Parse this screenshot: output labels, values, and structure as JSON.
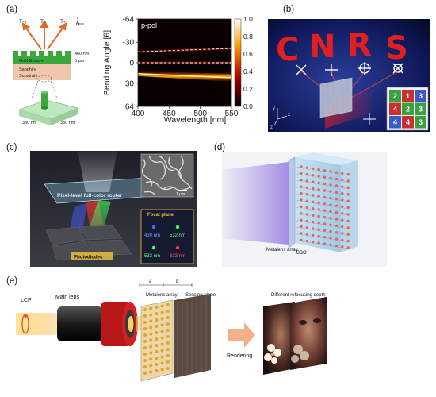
{
  "panels": {
    "a": {
      "label": "(a)",
      "orders": [
        "T₋₁",
        "T₀",
        "T₊₁"
      ],
      "dim_top": "460 nm",
      "dim_mid": "5 μm",
      "layer_epi": "GaN Epilayer",
      "layer_sapphire": "Sapphire",
      "layer_substrate": "Substrate",
      "pillar_w1": "330 nm",
      "pillar_w2": "330 nm",
      "plot_tag": "p-pol",
      "colorbar_ticks": [
        "1.0",
        "0.8",
        "0.6",
        "0.4",
        "0.2",
        "0.0"
      ]
    },
    "b": {
      "label": "(b)",
      "letters": [
        "C",
        "N",
        "R",
        "S"
      ],
      "grid": [
        "2",
        "1",
        "3",
        "4",
        "2",
        "3",
        "4",
        "4",
        "3"
      ],
      "axes": [
        "y",
        "x",
        "z"
      ]
    },
    "c": {
      "label": "(c)",
      "router": "Pixel-level full-color router",
      "scale": "1 μm",
      "focal": "Focal plane",
      "wl": [
        "430 nm",
        "532 nm",
        "532 nm",
        "633 nm"
      ],
      "photodiodes": "Photodiodes"
    },
    "d": {
      "label": "(d)",
      "metalens": "Metalens array",
      "bbo": "BBO"
    },
    "e": {
      "label": "(e)",
      "lcp": "LCP",
      "main_lens": "Main lens",
      "dim_a": "a",
      "dim_b": "b",
      "metalens_array": "Metalens array",
      "sensing_plane": "Sensing plane",
      "rendering": "Rendering",
      "refocus": "Different refocusing depth"
    }
  },
  "chart_data": {
    "type": "heatmap",
    "title": "",
    "annotation": "p-pol",
    "xlabel": "Wavelength [nm]",
    "ylabel": "Bending Angle [θ]",
    "xlim": [
      400,
      550
    ],
    "ylim": [
      -64,
      64
    ],
    "xticks": [
      400,
      450,
      500,
      550
    ],
    "yticks": [
      -64,
      -30,
      0,
      30,
      64
    ],
    "colorbar": {
      "range": [
        0,
        1
      ],
      "ticks": [
        0,
        0.2,
        0.4,
        0.6,
        0.8,
        1.0
      ],
      "colormap": "hot"
    },
    "series": [
      {
        "order": "T-1",
        "dashed": true,
        "angle_at_400": -16,
        "angle_at_550": -21,
        "intensity": 0.25
      },
      {
        "order": "T0",
        "dashed": true,
        "angle_at_400": 0,
        "angle_at_550": 0,
        "intensity": 0.2
      },
      {
        "order": "T+1",
        "dashed": false,
        "angle_at_400": 16,
        "angle_at_550": 22,
        "intensity": 0.95
      }
    ]
  }
}
